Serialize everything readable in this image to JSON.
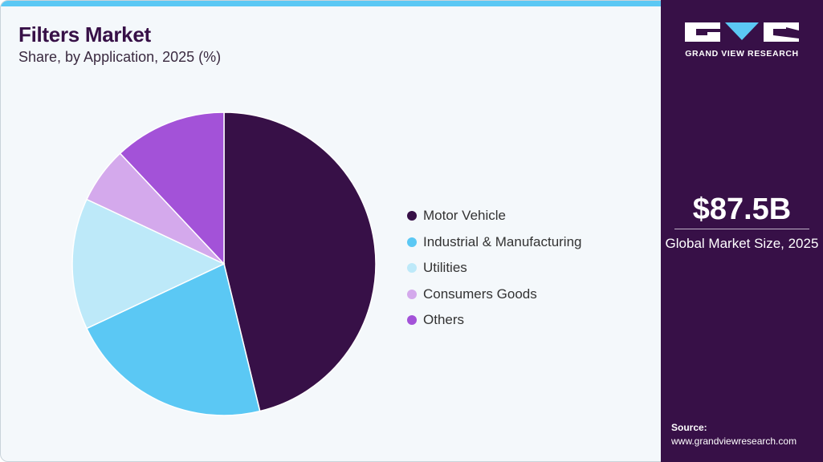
{
  "header": {
    "title": "Filters Market",
    "subtitle": "Share, by Application, 2025 (%)"
  },
  "chart_data": {
    "type": "pie",
    "title": "Filters Market",
    "subtitle": "Share, by Application, 2025 (%)",
    "categories": [
      "Motor Vehicle",
      "Industrial & Manufacturing",
      "Utilities",
      "Consumers Goods",
      "Others"
    ],
    "values": [
      46.2,
      21.8,
      14.0,
      6.0,
      12.0
    ],
    "colors": [
      "#371047",
      "#5bc8f4",
      "#bde9f9",
      "#d4a9ec",
      "#a352d8"
    ],
    "start_angle": "12 o'clock, clockwise",
    "legend_position": "right"
  },
  "sidebar": {
    "brand": "GRAND VIEW RESEARCH",
    "market_size": "$87.5B",
    "market_caption": "Global Market Size, 2025",
    "source_label": "Source:",
    "source_url": "www.grandviewresearch.com"
  }
}
